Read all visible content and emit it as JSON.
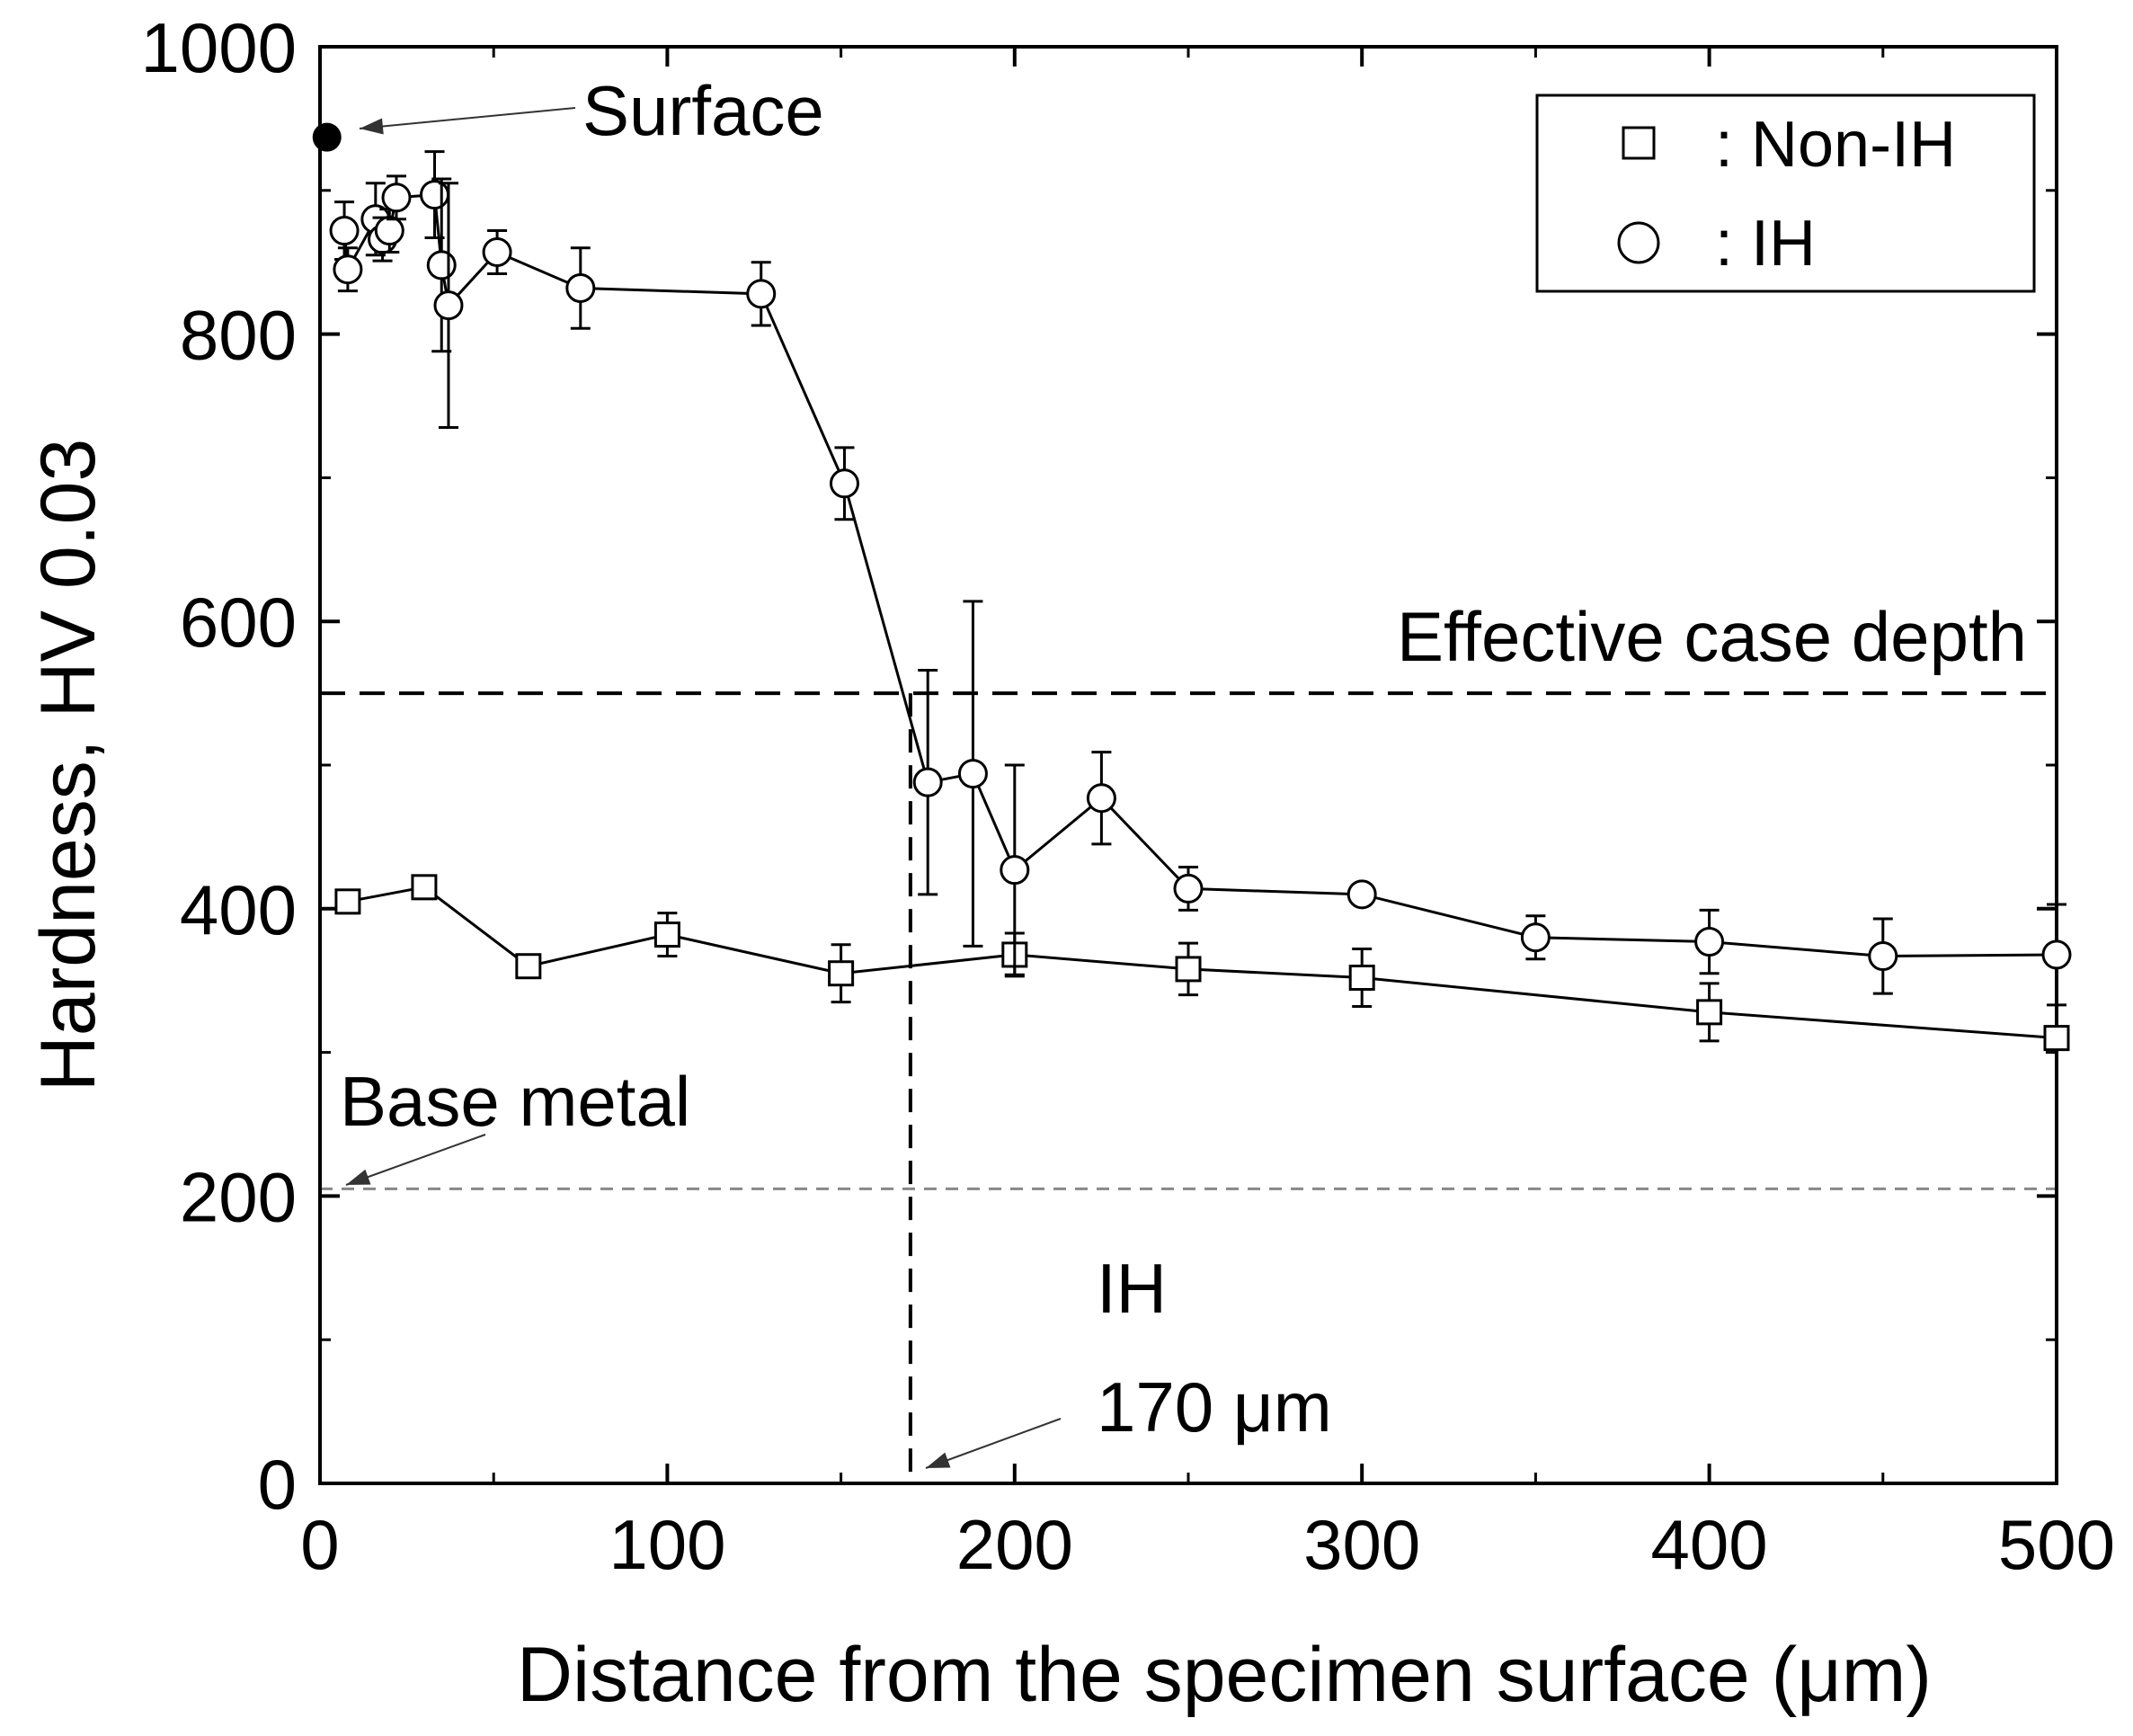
{
  "chart_data": {
    "type": "line",
    "xlabel": "Distance from the specimen surface (μm)",
    "ylabel": "Hardness, HV 0.03",
    "xlim": [
      0,
      500
    ],
    "ylim": [
      0,
      1000
    ],
    "xticks": [
      0,
      100,
      200,
      300,
      400,
      500
    ],
    "yticks": [
      0,
      200,
      400,
      600,
      800,
      1000
    ],
    "grid": false,
    "legend_position": "top-right",
    "series": [
      {
        "name": ": Non-IH",
        "marker": "square",
        "points": [
          {
            "x": 8,
            "y": 405,
            "err": 8
          },
          {
            "x": 30,
            "y": 415,
            "err": 8
          },
          {
            "x": 60,
            "y": 360,
            "err": 6
          },
          {
            "x": 100,
            "y": 382,
            "err": 15
          },
          {
            "x": 150,
            "y": 355,
            "err": 20
          },
          {
            "x": 200,
            "y": 368,
            "err": 15
          },
          {
            "x": 250,
            "y": 358,
            "err": 18
          },
          {
            "x": 300,
            "y": 352,
            "err": 20
          },
          {
            "x": 400,
            "y": 328,
            "err": 20
          },
          {
            "x": 500,
            "y": 310,
            "err": 8
          }
        ]
      },
      {
        "name": ": IH",
        "marker": "circle",
        "points": [
          {
            "x": 7,
            "y": 872,
            "err": 20
          },
          {
            "x": 8,
            "y": 845,
            "err": 15
          },
          {
            "x": 16,
            "y": 880,
            "err": 25
          },
          {
            "x": 18,
            "y": 866,
            "err": 15
          },
          {
            "x": 20,
            "y": 872,
            "err": 15
          },
          {
            "x": 22,
            "y": 895,
            "err": 15
          },
          {
            "x": 33,
            "y": 897,
            "err": 30
          },
          {
            "x": 35,
            "y": 848,
            "err": 60
          },
          {
            "x": 37,
            "y": 820,
            "err": 85
          },
          {
            "x": 51,
            "y": 857,
            "err": 15
          },
          {
            "x": 75,
            "y": 832,
            "err": 28
          },
          {
            "x": 127,
            "y": 828,
            "err": 22
          },
          {
            "x": 151,
            "y": 696,
            "err": 25
          },
          {
            "x": 175,
            "y": 488,
            "err": 78
          },
          {
            "x": 188,
            "y": 494,
            "err": 120
          },
          {
            "x": 200,
            "y": 427,
            "err": 73
          },
          {
            "x": 225,
            "y": 477,
            "err": 32
          },
          {
            "x": 250,
            "y": 414,
            "err": 15
          },
          {
            "x": 300,
            "y": 410,
            "err": 6
          },
          {
            "x": 350,
            "y": 380,
            "err": 15
          },
          {
            "x": 400,
            "y": 377,
            "err": 22
          },
          {
            "x": 450,
            "y": 367,
            "err": 26
          },
          {
            "x": 500,
            "y": 368,
            "err": 35
          }
        ]
      }
    ],
    "surface_point": {
      "x": 2,
      "y": 937
    },
    "reference_lines": {
      "effective_case_depth": 550,
      "base_metal": 205,
      "ih_depth_x": 170
    },
    "annotations": {
      "surface": "Surface",
      "effective_case_depth": "Effective case depth",
      "base_metal": "Base metal",
      "ih": "IH",
      "ih_depth": "170 μm"
    }
  }
}
